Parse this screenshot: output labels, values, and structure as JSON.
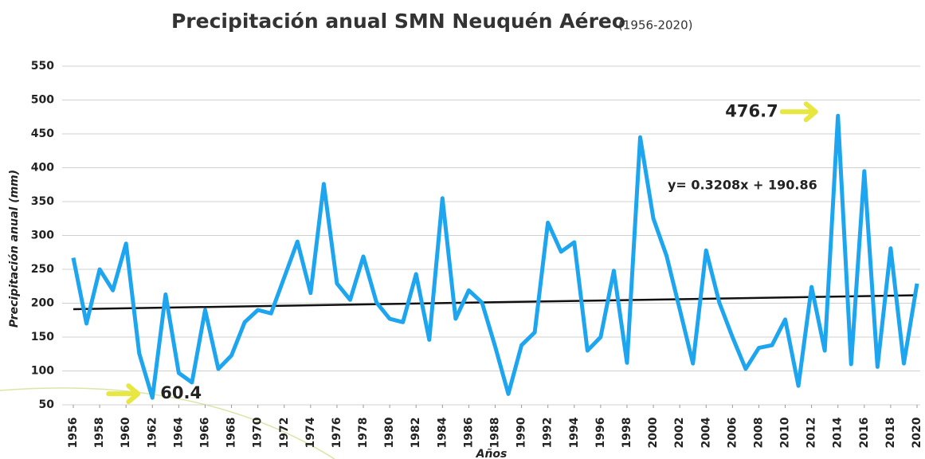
{
  "chart_data": {
    "type": "line",
    "title": "Precipitación anual SMN Neuquén Aéreo",
    "subtitle": "(1956-2020)",
    "y_label": "Precipitación anual (mm)",
    "x_label": "Años",
    "x": [
      1956,
      1957,
      1958,
      1959,
      1960,
      1961,
      1962,
      1963,
      1964,
      1965,
      1966,
      1967,
      1968,
      1969,
      1970,
      1971,
      1972,
      1973,
      1974,
      1975,
      1976,
      1977,
      1978,
      1979,
      1980,
      1981,
      1982,
      1983,
      1984,
      1985,
      1986,
      1987,
      1988,
      1989,
      1990,
      1991,
      1992,
      1993,
      1994,
      1995,
      1996,
      1997,
      1998,
      1999,
      2000,
      2001,
      2002,
      2003,
      2004,
      2005,
      2006,
      2007,
      2008,
      2009,
      2010,
      2011,
      2012,
      2013,
      2014,
      2015,
      2016,
      2017,
      2018,
      2019,
      2020
    ],
    "series": [
      {
        "name": "Precipitación anual",
        "color": "#1ea5f0",
        "values": [
          267,
          170,
          250,
          219,
          288,
          126,
          60.4,
          213,
          97,
          83,
          190,
          103,
          123,
          172,
          190,
          185,
          238,
          291,
          215,
          376,
          229,
          205,
          269,
          201,
          177,
          172,
          243,
          146,
          355,
          177,
          219,
          201,
          136,
          66,
          138,
          157,
          319,
          276,
          290,
          130,
          150,
          248,
          112,
          445,
          325,
          270,
          191,
          111,
          278,
          201,
          150,
          103,
          134,
          138,
          176,
          78,
          224,
          130,
          476.7,
          110,
          395,
          106,
          281,
          111,
          229
        ]
      }
    ],
    "trendline": {
      "label": "y= 0.3208x + 190.86",
      "slope": 0.3208,
      "intercept": 190.86,
      "color": "#111111"
    },
    "annotations": [
      {
        "text": "476.7",
        "x": 2014,
        "y": 476.7
      },
      {
        "text": "60.4",
        "x": 1962,
        "y": 60.4
      }
    ],
    "xlim": [
      1956,
      2020
    ],
    "xticks": [
      1956,
      1958,
      1960,
      1962,
      1964,
      1966,
      1968,
      1970,
      1972,
      1974,
      1976,
      1978,
      1980,
      1982,
      1984,
      1986,
      1988,
      1990,
      1992,
      1994,
      1996,
      1998,
      2000,
      2002,
      2004,
      2006,
      2008,
      2010,
      2012,
      2014,
      2016,
      2018,
      2020
    ],
    "ylim": [
      50,
      550
    ],
    "yticks": [
      50,
      100,
      150,
      200,
      250,
      300,
      350,
      400,
      450,
      500,
      550
    ],
    "grid": true
  }
}
